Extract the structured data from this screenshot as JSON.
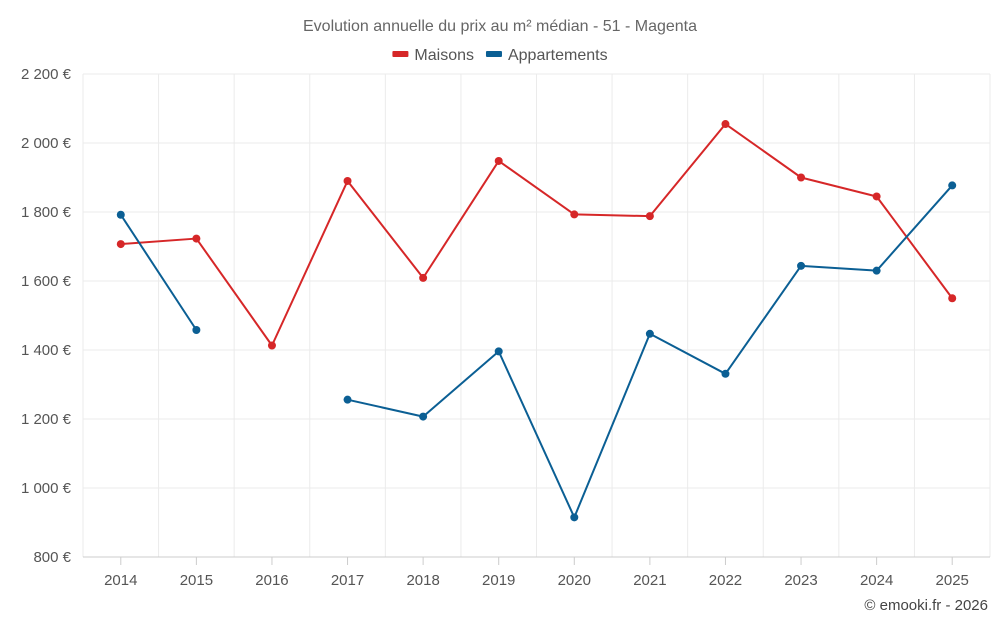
{
  "chart_data": {
    "type": "line",
    "title": "Evolution annuelle du prix au m² médian - 51 - Magenta",
    "x": [
      "2014",
      "2015",
      "2016",
      "2017",
      "2018",
      "2019",
      "2020",
      "2021",
      "2022",
      "2023",
      "2024",
      "2025"
    ],
    "ylim": [
      800,
      2200
    ],
    "yticks": [
      800,
      1000,
      1200,
      1400,
      1600,
      1800,
      2000,
      2200
    ],
    "ytick_labels": [
      "800 €",
      "1 000 €",
      "1 200 €",
      "1 400 €",
      "1 600 €",
      "1 800 €",
      "2 000 €",
      "2 200 €"
    ],
    "grid": true,
    "legend_position": "top-center",
    "series": [
      {
        "name": "Maisons",
        "color": "#d62728",
        "values": [
          1707,
          1723,
          1413,
          1890,
          1609,
          1948,
          1793,
          1788,
          2055,
          1900,
          1845,
          1550
        ]
      },
      {
        "name": "Appartements",
        "color": "#0b5f94",
        "values": [
          1792,
          1458,
          null,
          1256,
          1207,
          1396,
          915,
          1447,
          1331,
          1644,
          1630,
          1877
        ]
      }
    ],
    "credit": "© emooki.fr - 2026"
  }
}
